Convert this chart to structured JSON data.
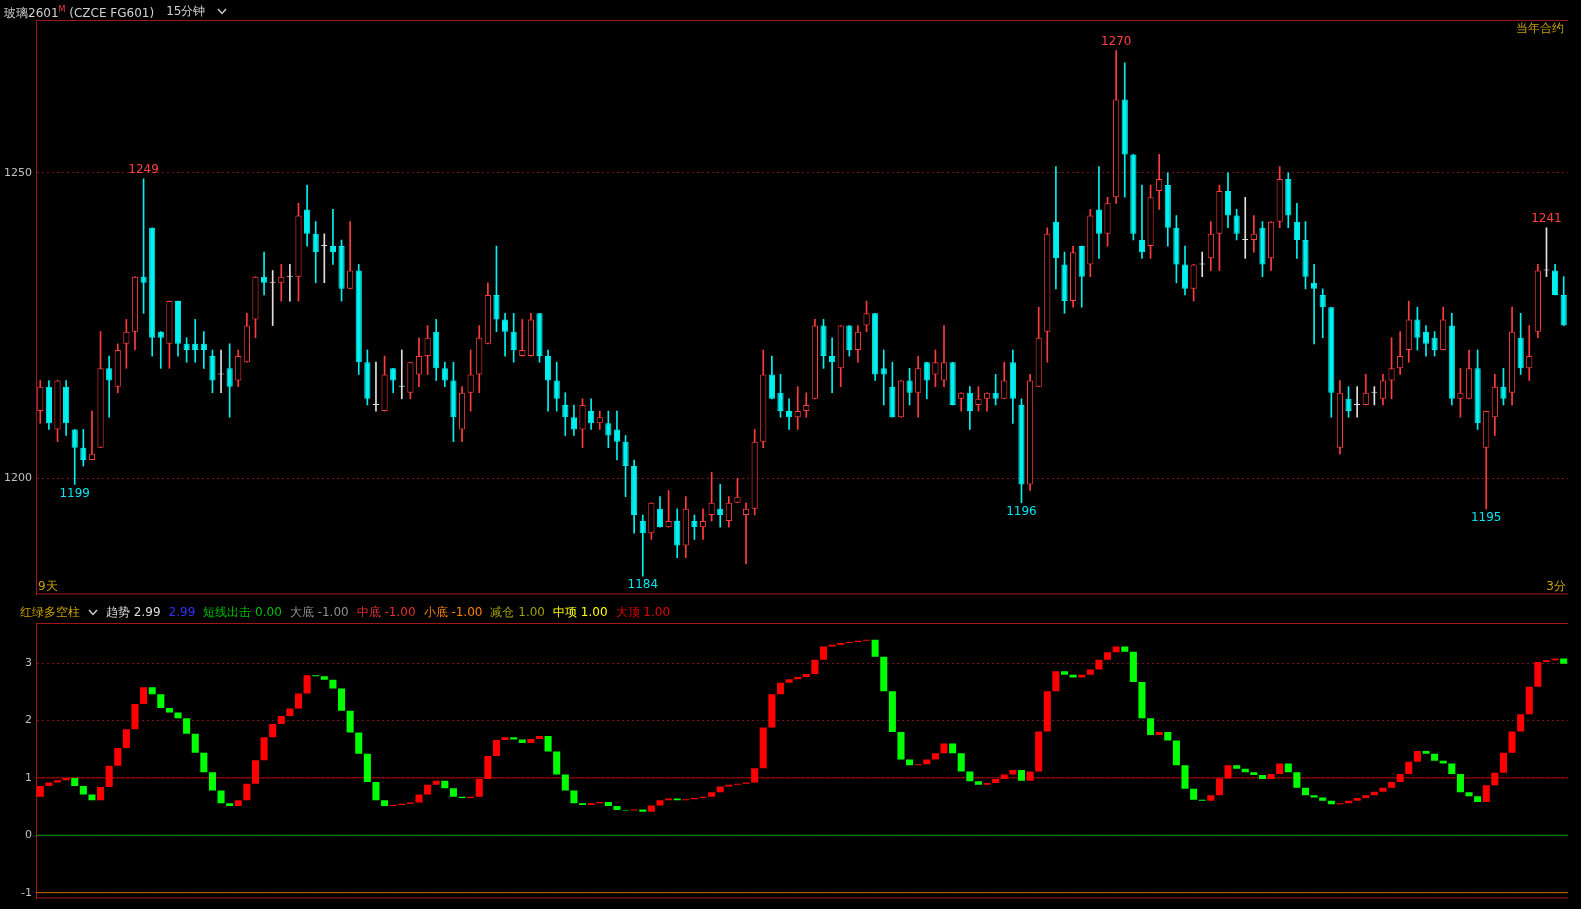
{
  "chart_data": [
    {
      "type": "candlestick",
      "title": "玻璃2601$^{M}$ (CZCE FG601)",
      "subtitle": "15分钟",
      "categories": [
        null,
        null,
        null,
        null,
        null,
        null,
        null,
        null,
        null,
        null,
        null,
        null,
        null,
        null,
        null,
        null,
        null,
        null,
        null,
        null,
        null,
        null,
        null,
        null,
        null,
        null,
        null,
        null,
        null,
        null,
        null,
        null,
        null,
        null,
        null,
        null,
        null,
        null,
        null,
        null,
        null,
        null,
        null,
        null,
        null,
        null,
        null,
        null,
        null,
        null,
        null,
        null,
        null,
        null,
        null,
        null,
        null,
        null,
        null,
        null,
        null,
        null,
        null,
        null,
        null,
        null,
        null,
        null,
        null,
        null,
        null,
        null,
        null,
        null,
        null,
        null,
        null,
        null,
        null,
        null,
        null,
        null,
        null,
        null,
        null,
        null,
        null,
        null,
        null,
        null,
        null,
        null,
        null,
        null,
        null,
        null,
        null,
        null,
        null,
        null,
        null,
        null,
        null,
        null,
        null,
        null,
        null,
        null,
        null,
        null,
        null,
        null,
        null,
        null,
        null,
        null,
        null,
        null,
        null,
        null,
        null,
        null,
        null,
        null,
        null,
        null,
        null,
        null,
        null,
        null,
        null,
        null,
        null,
        null,
        null,
        null,
        null,
        null,
        null,
        null,
        null,
        null,
        null,
        null,
        null,
        null,
        null,
        null,
        null,
        null,
        null,
        null,
        null,
        null,
        null,
        null,
        null,
        null,
        null,
        null,
        null,
        null,
        null,
        null,
        null,
        null,
        null,
        null,
        null,
        null,
        null,
        null,
        null,
        null,
        null,
        null,
        null,
        null
      ],
      "ohlc": [
        [
          1211,
          1216,
          1209,
          1215
        ],
        [
          1215,
          1216,
          1208,
          1209
        ],
        [
          1208,
          1216,
          1206,
          1216
        ],
        [
          1215,
          1216,
          1207,
          1209
        ],
        [
          1208,
          1208,
          1199,
          1205
        ],
        [
          1205,
          1208,
          1202,
          1203
        ],
        [
          1203,
          1211,
          1203,
          1204
        ],
        [
          1205,
          1224,
          1205,
          1218
        ],
        [
          1218,
          1220,
          1210,
          1216
        ],
        [
          1215,
          1222,
          1214,
          1221
        ],
        [
          1222,
          1226,
          1218,
          1224
        ],
        [
          1224,
          1233,
          1221,
          1233
        ],
        [
          1233,
          1249,
          1227,
          1232
        ],
        [
          1241,
          1241,
          1220,
          1223
        ],
        [
          1224,
          1224,
          1218,
          1223
        ],
        [
          1222,
          1229,
          1218,
          1229
        ],
        [
          1229,
          1229,
          1220,
          1222
        ],
        [
          1222,
          1223,
          1219,
          1221
        ],
        [
          1222,
          1226,
          1219,
          1221
        ],
        [
          1222,
          1224,
          1218,
          1221
        ],
        [
          1220,
          1221,
          1214,
          1216
        ],
        [
          1217,
          1221,
          1214,
          1217
        ],
        [
          1218,
          1222,
          1210,
          1215
        ],
        [
          1216,
          1221,
          1215,
          1220
        ],
        [
          1219,
          1227,
          1219,
          1225
        ],
        [
          1226,
          1233,
          1223,
          1233
        ],
        [
          1233,
          1237,
          1230,
          1232
        ],
        [
          1232,
          1234,
          1225,
          1232
        ],
        [
          1232,
          1235,
          1229,
          1233
        ],
        [
          1233,
          1235,
          1229,
          1233
        ],
        [
          1233,
          1245,
          1229,
          1243
        ],
        [
          1244,
          1248,
          1238,
          1240
        ],
        [
          1240,
          1242,
          1232,
          1237
        ],
        [
          1238,
          1240,
          1232,
          1238
        ],
        [
          1238,
          1244,
          1235,
          1237
        ],
        [
          1238,
          1239,
          1229,
          1231
        ],
        [
          1231,
          1242,
          1231,
          1234
        ],
        [
          1234,
          1235,
          1217,
          1219
        ],
        [
          1219,
          1221,
          1212,
          1213
        ],
        [
          1212,
          1219,
          1211,
          1212
        ],
        [
          1211,
          1220,
          1211,
          1217
        ],
        [
          1218,
          1218,
          1214,
          1216
        ],
        [
          1215,
          1221,
          1213,
          1215
        ],
        [
          1214,
          1219,
          1213,
          1219
        ],
        [
          1217,
          1223,
          1215,
          1220
        ],
        [
          1220,
          1225,
          1217,
          1223
        ],
        [
          1224,
          1226,
          1216,
          1218
        ],
        [
          1218,
          1219,
          1215,
          1216
        ],
        [
          1216,
          1219,
          1206,
          1210
        ],
        [
          1208,
          1215,
          1206,
          1214
        ],
        [
          1214,
          1221,
          1211,
          1217
        ],
        [
          1217,
          1225,
          1214,
          1223
        ],
        [
          1222,
          1232,
          1222,
          1230
        ],
        [
          1230,
          1238,
          1224,
          1226
        ],
        [
          1226,
          1227,
          1220,
          1224
        ],
        [
          1224,
          1227,
          1219,
          1221
        ],
        [
          1220,
          1226,
          1220,
          1221
        ],
        [
          1220,
          1227,
          1220,
          1226
        ],
        [
          1227,
          1227,
          1219,
          1220
        ],
        [
          1220,
          1221,
          1211,
          1216
        ],
        [
          1216,
          1219,
          1211,
          1213
        ],
        [
          1212,
          1214,
          1207,
          1210
        ],
        [
          1210,
          1212,
          1207,
          1208
        ],
        [
          1208,
          1213,
          1205,
          1212
        ],
        [
          1211,
          1213,
          1208,
          1209
        ],
        [
          1209,
          1211,
          1208,
          1210
        ],
        [
          1209,
          1211,
          1205,
          1207
        ],
        [
          1208,
          1211,
          1203,
          1206
        ],
        [
          1206,
          1207,
          1197,
          1202
        ],
        [
          1202,
          1203,
          1191,
          1194
        ],
        [
          1193,
          1194,
          1184,
          1191
        ],
        [
          1191,
          1196,
          1190,
          1196
        ],
        [
          1195,
          1197,
          1192,
          1192
        ],
        [
          1192,
          1198,
          1192,
          1193
        ],
        [
          1193,
          1195,
          1187,
          1189
        ],
        [
          1189,
          1197,
          1187,
          1195
        ],
        [
          1193,
          1194,
          1190,
          1192
        ],
        [
          1192,
          1195,
          1190,
          1193
        ],
        [
          1194,
          1201,
          1193,
          1196
        ],
        [
          1195,
          1199,
          1192,
          1194
        ],
        [
          1193,
          1197,
          1192,
          1196
        ],
        [
          1196,
          1200,
          1196,
          1197
        ],
        [
          1194,
          1196,
          1186,
          1195
        ],
        [
          1195,
          1208,
          1194,
          1206
        ],
        [
          1206,
          1221,
          1205,
          1217
        ],
        [
          1217,
          1220,
          1213,
          1213
        ],
        [
          1214,
          1217,
          1210,
          1211
        ],
        [
          1211,
          1213,
          1208,
          1210
        ],
        [
          1210,
          1215,
          1208,
          1211
        ],
        [
          1211,
          1214,
          1210,
          1212
        ],
        [
          1213,
          1226,
          1213,
          1225
        ],
        [
          1225,
          1226,
          1218,
          1220
        ],
        [
          1220,
          1223,
          1214,
          1219
        ],
        [
          1218,
          1225,
          1215,
          1225
        ],
        [
          1225,
          1225,
          1220,
          1221
        ],
        [
          1221,
          1225,
          1219,
          1224
        ],
        [
          1225,
          1229,
          1224,
          1227
        ],
        [
          1227,
          1227,
          1216,
          1217
        ],
        [
          1218,
          1221,
          1212,
          1217
        ],
        [
          1215,
          1219,
          1210,
          1210
        ],
        [
          1210,
          1216,
          1210,
          1216
        ],
        [
          1216,
          1218,
          1212,
          1214
        ],
        [
          1214,
          1220,
          1210,
          1218
        ],
        [
          1219,
          1219,
          1213,
          1216
        ],
        [
          1217,
          1221,
          1215,
          1219
        ],
        [
          1216,
          1225,
          1215,
          1219
        ],
        [
          1219,
          1219,
          1212,
          1212
        ],
        [
          1213,
          1214,
          1211,
          1214
        ],
        [
          1214,
          1215,
          1208,
          1211
        ],
        [
          1212,
          1215,
          1211,
          1213
        ],
        [
          1213,
          1214,
          1211,
          1214
        ],
        [
          1214,
          1217,
          1212,
          1213
        ],
        [
          1213,
          1219,
          1213,
          1216
        ],
        [
          1219,
          1221,
          1209,
          1213
        ],
        [
          1212,
          1213,
          1196,
          1199
        ],
        [
          1199,
          1217,
          1198,
          1216
        ],
        [
          1215,
          1228,
          1215,
          1223
        ],
        [
          1224,
          1241,
          1219,
          1240
        ],
        [
          1242,
          1251,
          1231,
          1236
        ],
        [
          1235,
          1237,
          1227,
          1229
        ],
        [
          1229,
          1238,
          1228,
          1237
        ],
        [
          1238,
          1238,
          1228,
          1233
        ],
        [
          1235,
          1244,
          1233,
          1243
        ],
        [
          1244,
          1251,
          1236,
          1240
        ],
        [
          1240,
          1246,
          1238,
          1245
        ],
        [
          1246,
          1270,
          1245,
          1262
        ],
        [
          1262,
          1268,
          1246,
          1253
        ],
        [
          1253,
          1253,
          1239,
          1240
        ],
        [
          1239,
          1248,
          1236,
          1237
        ],
        [
          1238,
          1248,
          1236,
          1246
        ],
        [
          1247,
          1253,
          1244,
          1249
        ],
        [
          1248,
          1250,
          1238,
          1241
        ],
        [
          1241,
          1243,
          1232,
          1235
        ],
        [
          1235,
          1238,
          1230,
          1231
        ],
        [
          1231,
          1235,
          1229,
          1235
        ],
        [
          1235,
          1237,
          1233,
          1235
        ],
        [
          1236,
          1242,
          1234,
          1240
        ],
        [
          1240,
          1248,
          1234,
          1247
        ],
        [
          1247,
          1250,
          1241,
          1243
        ],
        [
          1243,
          1244,
          1239,
          1240
        ],
        [
          1239,
          1246,
          1236,
          1239
        ],
        [
          1239,
          1243,
          1237,
          1240
        ],
        [
          1241,
          1242,
          1233,
          1235
        ],
        [
          1236,
          1242,
          1234,
          1242
        ],
        [
          1242,
          1251,
          1241,
          1249
        ],
        [
          1249,
          1250,
          1241,
          1243
        ],
        [
          1242,
          1245,
          1236,
          1239
        ],
        [
          1239,
          1242,
          1231,
          1233
        ],
        [
          1232,
          1235,
          1222,
          1231
        ],
        [
          1230,
          1231,
          1223,
          1228
        ],
        [
          1228,
          1228,
          1210,
          1214
        ],
        [
          1205,
          1216,
          1204,
          1214
        ],
        [
          1213,
          1215,
          1210,
          1211
        ],
        [
          1212,
          1215,
          1210,
          1212
        ],
        [
          1212,
          1217,
          1212,
          1214
        ],
        [
          1214,
          1215,
          1212,
          1214
        ],
        [
          1213,
          1217,
          1212,
          1216
        ],
        [
          1216,
          1223,
          1213,
          1218
        ],
        [
          1218,
          1224,
          1217,
          1220
        ],
        [
          1221,
          1229,
          1219,
          1226
        ],
        [
          1226,
          1228,
          1221,
          1223
        ],
        [
          1224,
          1225,
          1220,
          1222
        ],
        [
          1223,
          1224,
          1220,
          1221
        ],
        [
          1221,
          1228,
          1221,
          1226
        ],
        [
          1225,
          1227,
          1212,
          1213
        ],
        [
          1213,
          1218,
          1210,
          1214
        ],
        [
          1213,
          1221,
          1213,
          1218
        ],
        [
          1218,
          1221,
          1208,
          1209
        ],
        [
          1205,
          1211,
          1195,
          1211
        ],
        [
          1210,
          1217,
          1207,
          1215
        ],
        [
          1215,
          1218,
          1212,
          1213
        ],
        [
          1214,
          1228,
          1212,
          1224
        ],
        [
          1223,
          1227,
          1217,
          1218
        ],
        [
          1218,
          1225,
          1216,
          1220
        ],
        [
          1224,
          1235,
          1223,
          1234
        ],
        [
          1234,
          1241,
          1233,
          1234
        ],
        [
          1234,
          1235,
          1230,
          1230
        ],
        [
          1230,
          1233,
          1225,
          1225
        ]
      ],
      "colors": [
        "#ff3c3c",
        "#00f0f0",
        "#ff3c3c",
        "#00f0f0",
        "#00f0f0",
        "#00f0f0",
        "#ff3c3c",
        "#ff3c3c",
        "#00f0f0",
        "#ff3c3c",
        "#ff3c3c",
        "#ff3c3c",
        "#00f0f0",
        "#00f0f0",
        "#00f0f0",
        "#ff3c3c",
        "#00f0f0",
        "#00f0f0",
        "#00f0f0",
        "#00f0f0",
        "#00f0f0",
        "#e0e0e0",
        "#00f0f0",
        "#ff3c3c",
        "#ff3c3c",
        "#ff3c3c",
        "#00f0f0",
        "#e0e0e0",
        "#ff3c3c",
        "#e0e0e0",
        "#ff3c3c",
        "#00f0f0",
        "#00f0f0",
        "#e0e0e0",
        "#00f0f0",
        "#00f0f0",
        "#ff3c3c",
        "#00f0f0",
        "#00f0f0",
        "#e0e0e0",
        "#ff3c3c",
        "#00f0f0",
        "#e0e0e0",
        "#ff3c3c",
        "#ff3c3c",
        "#ff3c3c",
        "#00f0f0",
        "#00f0f0",
        "#00f0f0",
        "#ff3c3c",
        "#ff3c3c",
        "#ff3c3c",
        "#ff3c3c",
        "#00f0f0",
        "#00f0f0",
        "#00f0f0",
        "#ff3c3c",
        "#ff3c3c",
        "#00f0f0",
        "#00f0f0",
        "#00f0f0",
        "#00f0f0",
        "#00f0f0",
        "#ff3c3c",
        "#00f0f0",
        "#ff3c3c",
        "#00f0f0",
        "#00f0f0",
        "#00f0f0",
        "#00f0f0",
        "#00f0f0",
        "#ff3c3c",
        "#00f0f0",
        "#ff3c3c",
        "#00f0f0",
        "#ff3c3c",
        "#00f0f0",
        "#ff3c3c",
        "#ff3c3c",
        "#00f0f0",
        "#ff3c3c",
        "#ff3c3c",
        "#ff3c3c",
        "#ff3c3c",
        "#ff3c3c",
        "#00f0f0",
        "#00f0f0",
        "#00f0f0",
        "#ff3c3c",
        "#ff3c3c",
        "#ff3c3c",
        "#00f0f0",
        "#00f0f0",
        "#ff3c3c",
        "#00f0f0",
        "#ff3c3c",
        "#ff3c3c",
        "#00f0f0",
        "#00f0f0",
        "#00f0f0",
        "#ff3c3c",
        "#00f0f0",
        "#ff3c3c",
        "#00f0f0",
        "#ff3c3c",
        "#ff3c3c",
        "#00f0f0",
        "#ff3c3c",
        "#00f0f0",
        "#ff3c3c",
        "#ff3c3c",
        "#00f0f0",
        "#ff3c3c",
        "#00f0f0",
        "#00f0f0",
        "#ff3c3c",
        "#ff3c3c",
        "#ff3c3c",
        "#00f0f0",
        "#00f0f0",
        "#ff3c3c",
        "#00f0f0",
        "#ff3c3c",
        "#00f0f0",
        "#ff3c3c",
        "#ff3c3c",
        "#00f0f0",
        "#00f0f0",
        "#00f0f0",
        "#ff3c3c",
        "#ff3c3c",
        "#00f0f0",
        "#00f0f0",
        "#00f0f0",
        "#ff3c3c",
        "#e0e0e0",
        "#ff3c3c",
        "#ff3c3c",
        "#00f0f0",
        "#00f0f0",
        "#e0e0e0",
        "#ff3c3c",
        "#00f0f0",
        "#ff3c3c",
        "#ff3c3c",
        "#00f0f0",
        "#00f0f0",
        "#00f0f0",
        "#00f0f0",
        "#00f0f0",
        "#00f0f0",
        "#ff3c3c",
        "#00f0f0",
        "#e0e0e0",
        "#ff3c3c",
        "#e0e0e0",
        "#ff3c3c",
        "#ff3c3c",
        "#ff3c3c",
        "#ff3c3c",
        "#00f0f0",
        "#00f0f0",
        "#00f0f0",
        "#ff3c3c",
        "#00f0f0",
        "#ff3c3c",
        "#ff3c3c",
        "#00f0f0",
        "#ff3c3c",
        "#ff3c3c",
        "#00f0f0",
        "#ff3c3c",
        "#00f0f0",
        "#ff3c3c",
        "#ff3c3c",
        "#e0e0e0",
        "#00f0f0",
        "#00f0f0"
      ],
      "ylim": [
        1181,
        1275
      ],
      "yticks": [
        1200,
        1250
      ],
      "grid": "y",
      "tick_labels": "y",
      "annotations": [
        "当年合约",
        "9天",
        "3分",
        {
          "text": "1249",
          "y": 1249
        },
        {
          "text": "1199",
          "y": 1199
        },
        {
          "text": "1184",
          "y": 1184
        },
        {
          "text": "1196",
          "y": 1196
        },
        {
          "text": "1270",
          "y": 1270
        },
        {
          "text": "1195",
          "y": 1195
        },
        {
          "text": "1241",
          "y": 1241
        }
      ]
    },
    {
      "type": "bar",
      "categories": [
        null,
        null,
        null,
        null,
        null,
        null,
        null,
        null,
        null,
        null,
        null,
        null,
        null,
        null,
        null,
        null,
        null,
        null,
        null,
        null,
        null,
        null,
        null,
        null,
        null,
        null,
        null,
        null,
        null,
        null,
        null,
        null,
        null,
        null,
        null,
        null,
        null,
        null,
        null,
        null,
        null,
        null,
        null,
        null,
        null,
        null,
        null,
        null,
        null,
        null,
        null,
        null,
        null,
        null,
        null,
        null,
        null,
        null,
        null,
        null,
        null,
        null,
        null,
        null,
        null,
        null,
        null,
        null,
        null,
        null,
        null,
        null,
        null,
        null,
        null,
        null,
        null,
        null,
        null,
        null,
        null,
        null,
        null,
        null,
        null,
        null,
        null,
        null,
        null,
        null,
        null,
        null,
        null,
        null,
        null,
        null,
        null,
        null,
        null,
        null,
        null,
        null,
        null,
        null,
        null,
        null,
        null,
        null,
        null,
        null,
        null,
        null,
        null,
        null,
        null,
        null,
        null,
        null,
        null,
        null,
        null,
        null,
        null,
        null,
        null,
        null,
        null,
        null,
        null,
        null,
        null,
        null,
        null,
        null,
        null,
        null,
        null,
        null,
        null,
        null,
        null,
        null,
        null,
        null,
        null,
        null,
        null,
        null,
        null,
        null,
        null,
        null,
        null,
        null,
        null,
        null,
        null,
        null,
        null,
        null,
        null,
        null,
        null,
        null,
        null,
        null,
        null,
        null,
        null,
        null,
        null,
        null,
        null,
        null,
        null,
        null,
        null,
        null
      ],
      "base": [
        0.67,
        0.86,
        0.92,
        0.96,
        1.0,
        0.86,
        0.71,
        0.61,
        0.84,
        1.21,
        1.52,
        1.85,
        2.29,
        2.58,
        2.46,
        2.22,
        2.14,
        2.04,
        1.77,
        1.44,
        1.1,
        0.78,
        0.56,
        0.51,
        0.61,
        0.9,
        1.31,
        1.71,
        1.94,
        2.08,
        2.21,
        2.47,
        2.79,
        2.77,
        2.71,
        2.56,
        2.17,
        1.79,
        1.42,
        0.93,
        0.61,
        0.51,
        0.53,
        0.55,
        0.57,
        0.71,
        0.88,
        0.95,
        0.82,
        0.67,
        0.65,
        0.67,
        0.98,
        1.38,
        1.66,
        1.71,
        1.67,
        1.61,
        1.68,
        1.73,
        1.46,
        1.06,
        0.78,
        0.56,
        0.53,
        0.56,
        0.58,
        0.51,
        0.44,
        0.43,
        0.45,
        0.41,
        0.52,
        0.61,
        0.64,
        0.61,
        0.63,
        0.65,
        0.67,
        0.75,
        0.85,
        0.88,
        0.9,
        0.92,
        1.17,
        1.88,
        2.46,
        2.66,
        2.72,
        2.76,
        2.81,
        3.06,
        3.29,
        3.32,
        3.35,
        3.37,
        3.39,
        3.41,
        3.11,
        2.51,
        1.8,
        1.32,
        1.22,
        1.24,
        1.32,
        1.43,
        1.6,
        1.43,
        1.11,
        0.94,
        0.88,
        0.91,
        0.98,
        1.06,
        1.14,
        0.95,
        1.11,
        1.81,
        2.51,
        2.86,
        2.8,
        2.75,
        2.8,
        2.89,
        3.06,
        3.19,
        3.29,
        3.2,
        2.67,
        2.04,
        1.75,
        1.8,
        1.65,
        1.22,
        0.81,
        0.62,
        0.6,
        0.7,
        0.99,
        1.22,
        1.16,
        1.1,
        1.05,
        0.98,
        1.07,
        1.25,
        1.1,
        0.83,
        0.7,
        0.66,
        0.6,
        0.54,
        0.56,
        0.6,
        0.65,
        0.7,
        0.76,
        0.83,
        0.93,
        1.07,
        1.28,
        1.47,
        1.42,
        1.3,
        1.25,
        1.07,
        0.75,
        0.68,
        0.58,
        0.87,
        1.09,
        1.44,
        1.81,
        2.11,
        2.59,
        3.02,
        3.05,
        3.08
      ],
      "values": [
        0.19,
        0.06,
        0.04,
        0.04,
        -0.14,
        -0.15,
        -0.1,
        0.23,
        0.37,
        0.31,
        0.33,
        0.44,
        0.29,
        -0.12,
        -0.24,
        -0.08,
        -0.1,
        -0.27,
        -0.33,
        -0.34,
        -0.32,
        -0.22,
        -0.05,
        0.1,
        0.29,
        0.41,
        0.4,
        0.23,
        0.14,
        0.13,
        0.26,
        0.32,
        -0.02,
        -0.06,
        -0.15,
        -0.39,
        -0.38,
        -0.37,
        -0.49,
        -0.32,
        -0.1,
        0.02,
        0.02,
        0.02,
        0.14,
        0.17,
        0.07,
        -0.13,
        -0.15,
        -0.02,
        0.02,
        0.31,
        0.4,
        0.28,
        0.05,
        -0.04,
        -0.06,
        0.07,
        0.05,
        -0.27,
        -0.4,
        -0.28,
        -0.22,
        -0.03,
        0.03,
        0.02,
        -0.07,
        -0.07,
        -0.01,
        0.02,
        -0.04,
        0.11,
        0.09,
        0.03,
        -0.03,
        0.02,
        0.02,
        0.02,
        0.08,
        0.1,
        0.03,
        0.02,
        0.02,
        0.25,
        0.71,
        0.58,
        0.2,
        0.06,
        0.04,
        0.05,
        0.25,
        0.23,
        0.03,
        0.03,
        0.02,
        0.02,
        0.02,
        -0.3,
        -0.6,
        -0.71,
        -0.48,
        -0.1,
        0.02,
        0.08,
        0.11,
        0.17,
        -0.17,
        -0.32,
        -0.17,
        -0.06,
        0.03,
        0.07,
        0.08,
        0.08,
        -0.19,
        0.16,
        0.7,
        0.7,
        0.35,
        -0.06,
        -0.05,
        0.05,
        0.09,
        0.17,
        0.13,
        0.1,
        -0.09,
        -0.53,
        -0.63,
        -0.29,
        0.05,
        -0.15,
        -0.43,
        -0.41,
        -0.19,
        -0.02,
        0.1,
        0.29,
        0.23,
        -0.06,
        -0.06,
        -0.05,
        -0.07,
        0.09,
        0.18,
        -0.15,
        -0.27,
        -0.13,
        -0.04,
        -0.06,
        -0.06,
        0.02,
        0.04,
        0.05,
        0.05,
        0.06,
        0.07,
        0.1,
        0.14,
        0.21,
        0.19,
        -0.05,
        -0.12,
        -0.05,
        -0.18,
        -0.32,
        -0.07,
        -0.1,
        0.29,
        0.22,
        0.35,
        0.37,
        0.3,
        0.48,
        0.43,
        0.03,
        0.03,
        -0.09
      ],
      "colors": [
        "#ff0000",
        "#ff0000",
        "#ff0000",
        "#ff0000",
        "#00ff00",
        "#00ff00",
        "#00ff00",
        "#ff0000",
        "#ff0000",
        "#ff0000",
        "#ff0000",
        "#ff0000",
        "#ff0000",
        "#00ff00",
        "#00ff00",
        "#00ff00",
        "#00ff00",
        "#00ff00",
        "#00ff00",
        "#00ff00",
        "#00ff00",
        "#00ff00",
        "#00ff00",
        "#ff0000",
        "#ff0000",
        "#ff0000",
        "#ff0000",
        "#ff0000",
        "#ff0000",
        "#ff0000",
        "#ff0000",
        "#ff0000",
        "#00ff00",
        "#00ff00",
        "#00ff00",
        "#00ff00",
        "#00ff00",
        "#00ff00",
        "#00ff00",
        "#00ff00",
        "#00ff00",
        "#ff0000",
        "#ff0000",
        "#ff0000",
        "#ff0000",
        "#ff0000",
        "#ff0000",
        "#00ff00",
        "#00ff00",
        "#00ff00",
        "#ff0000",
        "#ff0000",
        "#ff0000",
        "#ff0000",
        "#ff0000",
        "#00ff00",
        "#00ff00",
        "#ff0000",
        "#ff0000",
        "#00ff00",
        "#00ff00",
        "#00ff00",
        "#00ff00",
        "#00ff00",
        "#ff0000",
        "#ff0000",
        "#00ff00",
        "#00ff00",
        "#00ff00",
        "#ff0000",
        "#00ff00",
        "#ff0000",
        "#ff0000",
        "#ff0000",
        "#00ff00",
        "#ff0000",
        "#ff0000",
        "#ff0000",
        "#ff0000",
        "#ff0000",
        "#ff0000",
        "#ff0000",
        "#ff0000",
        "#ff0000",
        "#ff0000",
        "#ff0000",
        "#ff0000",
        "#ff0000",
        "#ff0000",
        "#ff0000",
        "#ff0000",
        "#ff0000",
        "#ff0000",
        "#ff0000",
        "#ff0000",
        "#ff0000",
        "#ff0000",
        "#00ff00",
        "#00ff00",
        "#00ff00",
        "#00ff00",
        "#00ff00",
        "#ff0000",
        "#ff0000",
        "#ff0000",
        "#ff0000",
        "#00ff00",
        "#00ff00",
        "#00ff00",
        "#00ff00",
        "#ff0000",
        "#ff0000",
        "#ff0000",
        "#ff0000",
        "#00ff00",
        "#ff0000",
        "#ff0000",
        "#ff0000",
        "#ff0000",
        "#00ff00",
        "#00ff00",
        "#ff0000",
        "#ff0000",
        "#ff0000",
        "#ff0000",
        "#ff0000",
        "#00ff00",
        "#00ff00",
        "#00ff00",
        "#00ff00",
        "#ff0000",
        "#00ff00",
        "#00ff00",
        "#00ff00",
        "#00ff00",
        "#00ff00",
        "#ff0000",
        "#ff0000",
        "#ff0000",
        "#00ff00",
        "#00ff00",
        "#00ff00",
        "#00ff00",
        "#ff0000",
        "#ff0000",
        "#00ff00",
        "#00ff00",
        "#00ff00",
        "#00ff00",
        "#00ff00",
        "#00ff00",
        "#ff0000",
        "#ff0000",
        "#ff0000",
        "#ff0000",
        "#ff0000",
        "#ff0000",
        "#ff0000",
        "#ff0000",
        "#ff0000",
        "#ff0000",
        "#00ff00",
        "#00ff00",
        "#00ff00",
        "#00ff00",
        "#00ff00",
        "#00ff00",
        "#00ff00",
        "#ff0000",
        "#ff0000",
        "#ff0000",
        "#ff0000",
        "#ff0000",
        "#ff0000",
        "#ff0000",
        "#ff0000",
        "#ff0000",
        "#00ff00"
      ],
      "ylim": [
        -1.1,
        3.7
      ],
      "yticks": [
        -1,
        0,
        1,
        2,
        3
      ],
      "grid": "y",
      "tick_labels": "y",
      "ref_lines": [
        {
          "axis": "y",
          "value": 1,
          "color": "#b00000"
        },
        {
          "axis": "y",
          "value": 0,
          "color": "#00a000"
        },
        {
          "axis": "y",
          "value": -1,
          "color": "#c86a00"
        }
      ],
      "annotations": [
        "红绿多空柱",
        "趋势 2.99",
        "2.99",
        "短线出击 0.00",
        "大底 -1.00",
        "中底 -1.00",
        "小底 -1.00",
        "减仓 1.00",
        "中项 1.00",
        "大顶 1.00"
      ]
    }
  ]
}
